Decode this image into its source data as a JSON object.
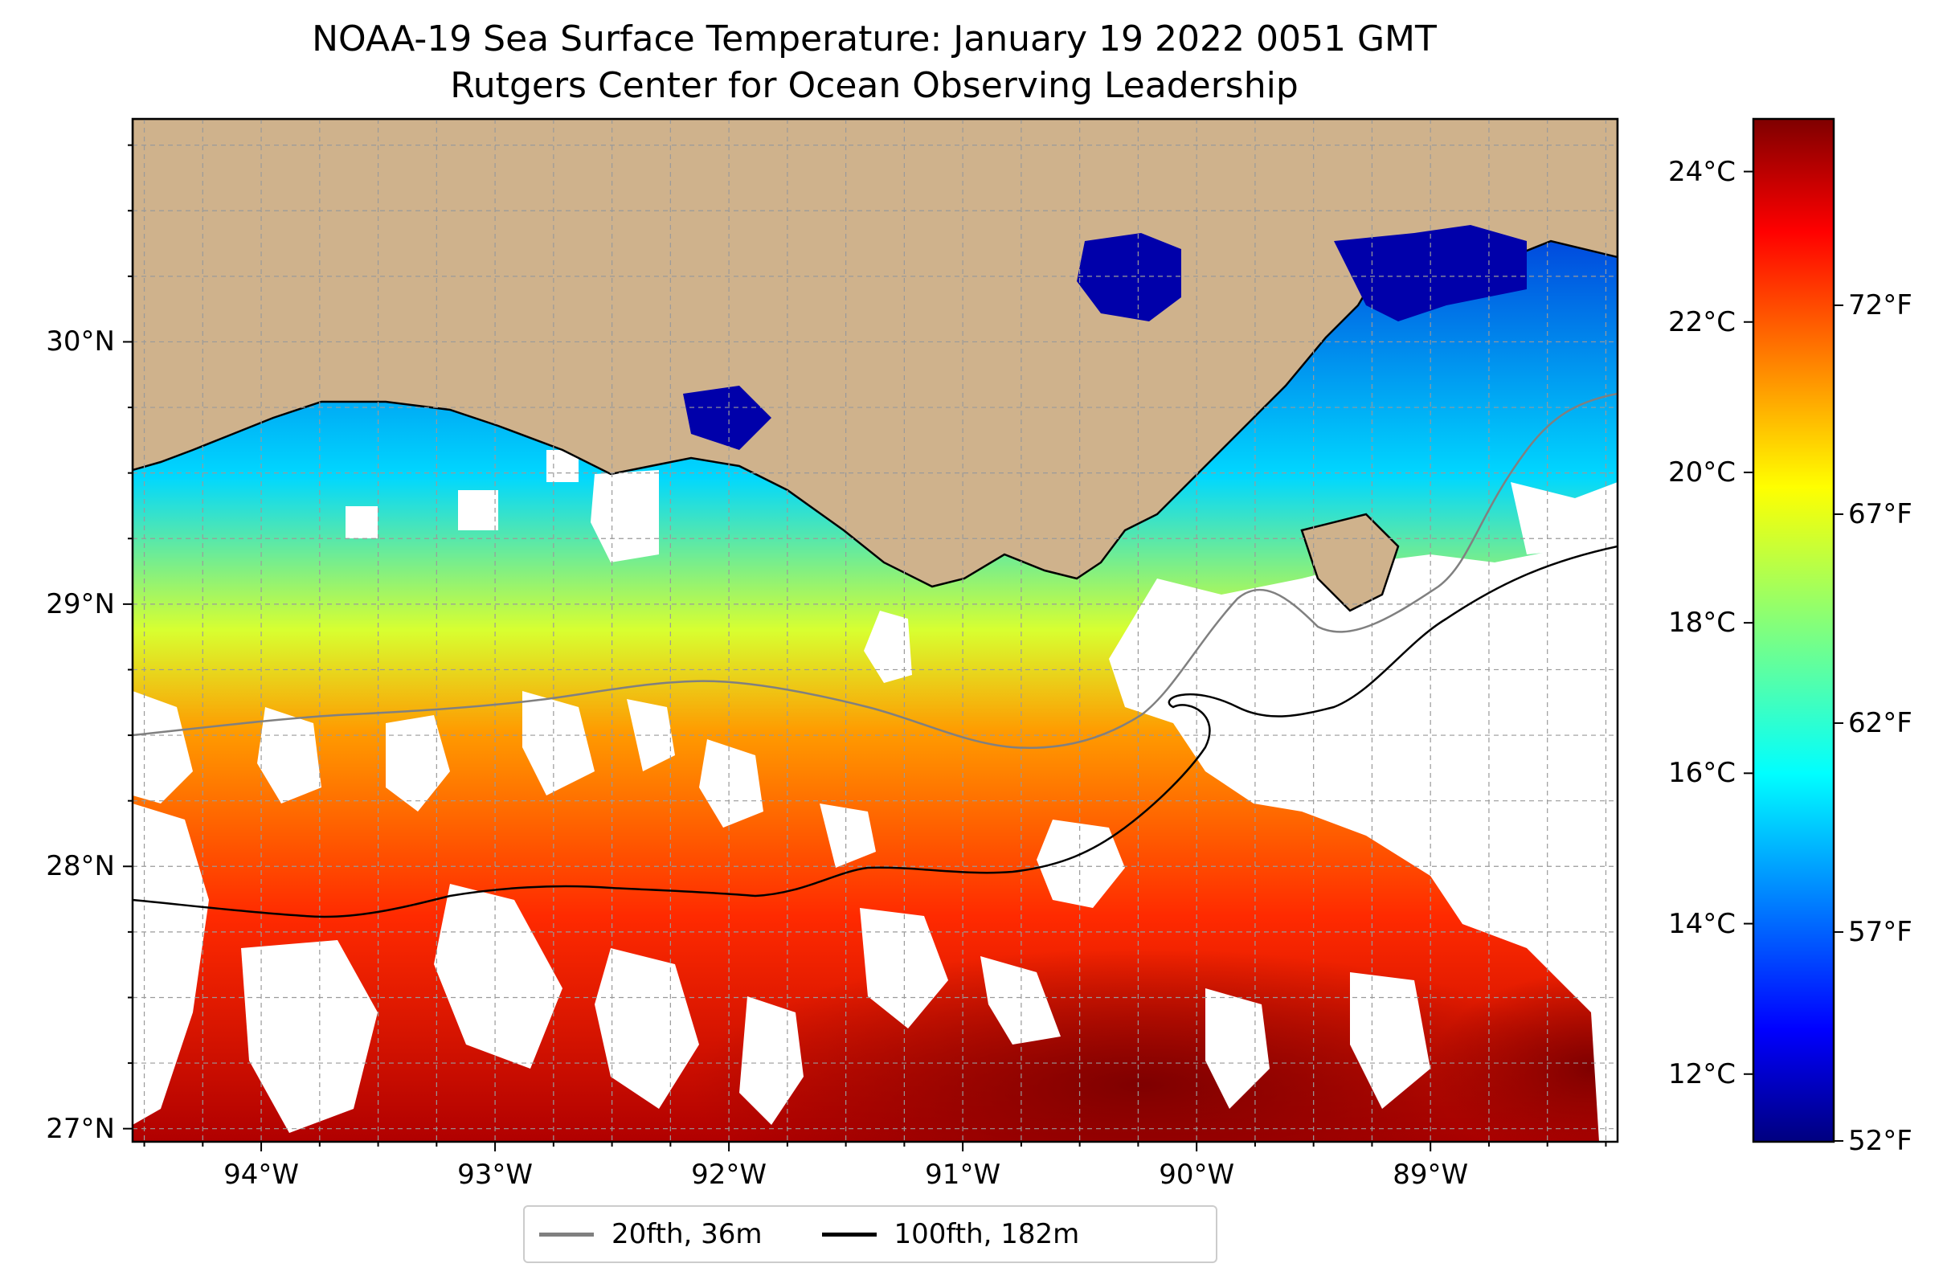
{
  "title": "NOAA-19 Sea Surface Temperature: January 19 2022 0051 GMT",
  "subtitle": "Rutgers Center for Ocean Observing Leadership",
  "map": {
    "type": "sea-surface-temperature map",
    "lon_range": [
      -94.55,
      -88.2
    ],
    "lat_range": [
      26.95,
      30.85
    ],
    "lon_ticks": [
      "94°W",
      "93°W",
      "92°W",
      "91°W",
      "90°W",
      "89°W"
    ],
    "lon_tick_values": [
      -94,
      -93,
      -92,
      -91,
      -90,
      -89
    ],
    "lat_ticks": [
      "30°N",
      "29°N",
      "28°N",
      "27°N"
    ],
    "lat_tick_values": [
      30,
      29,
      28,
      27
    ],
    "grid": true,
    "land_color": "#cfb28c",
    "nodata_color": "#ffffff"
  },
  "colorbar": {
    "celsius_labels": [
      "24°C",
      "22°C",
      "20°C",
      "18°C",
      "16°C",
      "14°C",
      "12°C"
    ],
    "celsius_values": [
      24,
      22,
      20,
      18,
      16,
      14,
      12
    ],
    "fahrenheit_labels": [
      "72°F",
      "67°F",
      "62°F",
      "57°F",
      "52°F"
    ],
    "fahrenheit_values": [
      72,
      67,
      62,
      57,
      52
    ],
    "range_c": [
      11.1,
      24.7
    ],
    "colormap": "jet",
    "colors": [
      "#00007f",
      "#0000ff",
      "#007fff",
      "#00ffff",
      "#7fff7f",
      "#ffff00",
      "#ff7f00",
      "#ff0000",
      "#7f0000"
    ]
  },
  "legend": {
    "items": [
      {
        "label": "20fth, 36m",
        "color": "#808080"
      },
      {
        "label": "100fth, 182m",
        "color": "#000000"
      }
    ],
    "position": "bottom-center"
  }
}
